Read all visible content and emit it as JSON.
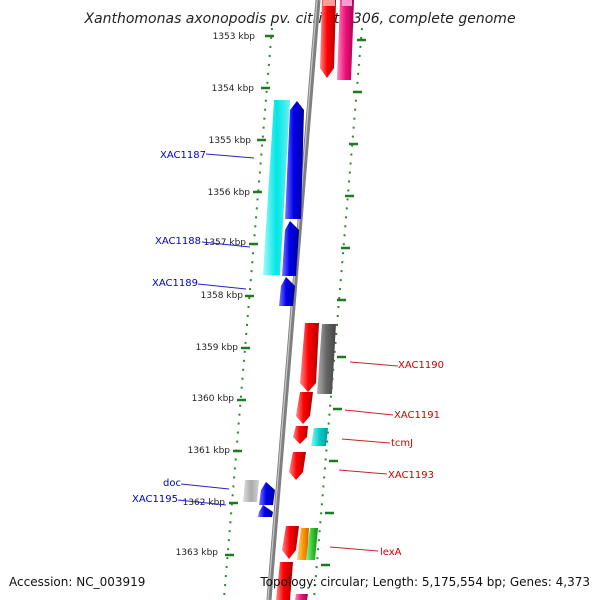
{
  "title": "Xanthomonas axonopodis pv. citri str. 306, complete genome",
  "footer": {
    "accession": "Accession: NC_003919",
    "summary": "Topology: circular; Length: 5,175,554 bp; Genes: 4,373"
  },
  "colors": {
    "backbone": "#7f7f7f",
    "ticks_major": "#1e7a1e",
    "ticks_minor": "#2a8a2a",
    "label_left": "#0000cc",
    "label_right": "#cc0000",
    "leader_left": "#2222cc",
    "leader_right": "#cc2222"
  },
  "scale": {
    "unit": "kbp",
    "ticks": [
      {
        "kbp": 1353,
        "label": "1353 kbp"
      },
      {
        "kbp": 1354,
        "label": "1354 kbp"
      },
      {
        "kbp": 1355,
        "label": "1355 kbp"
      },
      {
        "kbp": 1356,
        "label": "1356 kbp"
      },
      {
        "kbp": 1357,
        "label": "1357 kbp"
      },
      {
        "kbp": 1358,
        "label": "1358 kbp"
      },
      {
        "kbp": 1359,
        "label": "1359 kbp"
      },
      {
        "kbp": 1360,
        "label": "1360 kbp"
      },
      {
        "kbp": 1361,
        "label": "1361 kbp"
      },
      {
        "kbp": 1362,
        "label": "1362 kbp"
      },
      {
        "kbp": 1363,
        "label": "1363 kbp"
      }
    ]
  },
  "gene_labels": {
    "left": [
      {
        "id": "xac1187",
        "text": "XAC1187"
      },
      {
        "id": "xac1188",
        "text": "XAC1188"
      },
      {
        "id": "xac1189",
        "text": "XAC1189"
      },
      {
        "id": "doc",
        "text": "doc"
      },
      {
        "id": "xac1195",
        "text": "XAC1195"
      }
    ],
    "right": [
      {
        "id": "xac1190",
        "text": "XAC1190"
      },
      {
        "id": "xac1191",
        "text": "XAC1191"
      },
      {
        "id": "tcmj",
        "text": "tcmJ"
      },
      {
        "id": "xac1193",
        "text": "XAC1193"
      },
      {
        "id": "lexa",
        "text": "lexA"
      }
    ]
  },
  "features": [
    {
      "id": "top-red",
      "color": "#ff0000"
    },
    {
      "id": "top-magenta",
      "color": "#ee1177"
    },
    {
      "id": "cyan-long",
      "color": "#00e5e5"
    },
    {
      "id": "blue-1",
      "color": "#0000ee"
    },
    {
      "id": "blue-2",
      "color": "#0000ee"
    },
    {
      "id": "blue-3",
      "color": "#0000ee"
    },
    {
      "id": "red-1",
      "color": "#ff0000"
    },
    {
      "id": "gray-1",
      "color": "#666666"
    },
    {
      "id": "red-2",
      "color": "#ff0000"
    },
    {
      "id": "red-3",
      "color": "#ff0000"
    },
    {
      "id": "teal-1",
      "color": "#00cccc"
    },
    {
      "id": "red-4",
      "color": "#ff0000"
    },
    {
      "id": "gray-2",
      "color": "#aaaaaa"
    },
    {
      "id": "blue-4",
      "color": "#0000ee"
    },
    {
      "id": "blue-5",
      "color": "#0000ee"
    },
    {
      "id": "red-5",
      "color": "#ff0000"
    },
    {
      "id": "orange-1",
      "color": "#ff9900"
    },
    {
      "id": "green-1",
      "color": "#33cc33"
    },
    {
      "id": "red-6",
      "color": "#ff0000"
    },
    {
      "id": "magenta-2",
      "color": "#ee1177"
    }
  ]
}
